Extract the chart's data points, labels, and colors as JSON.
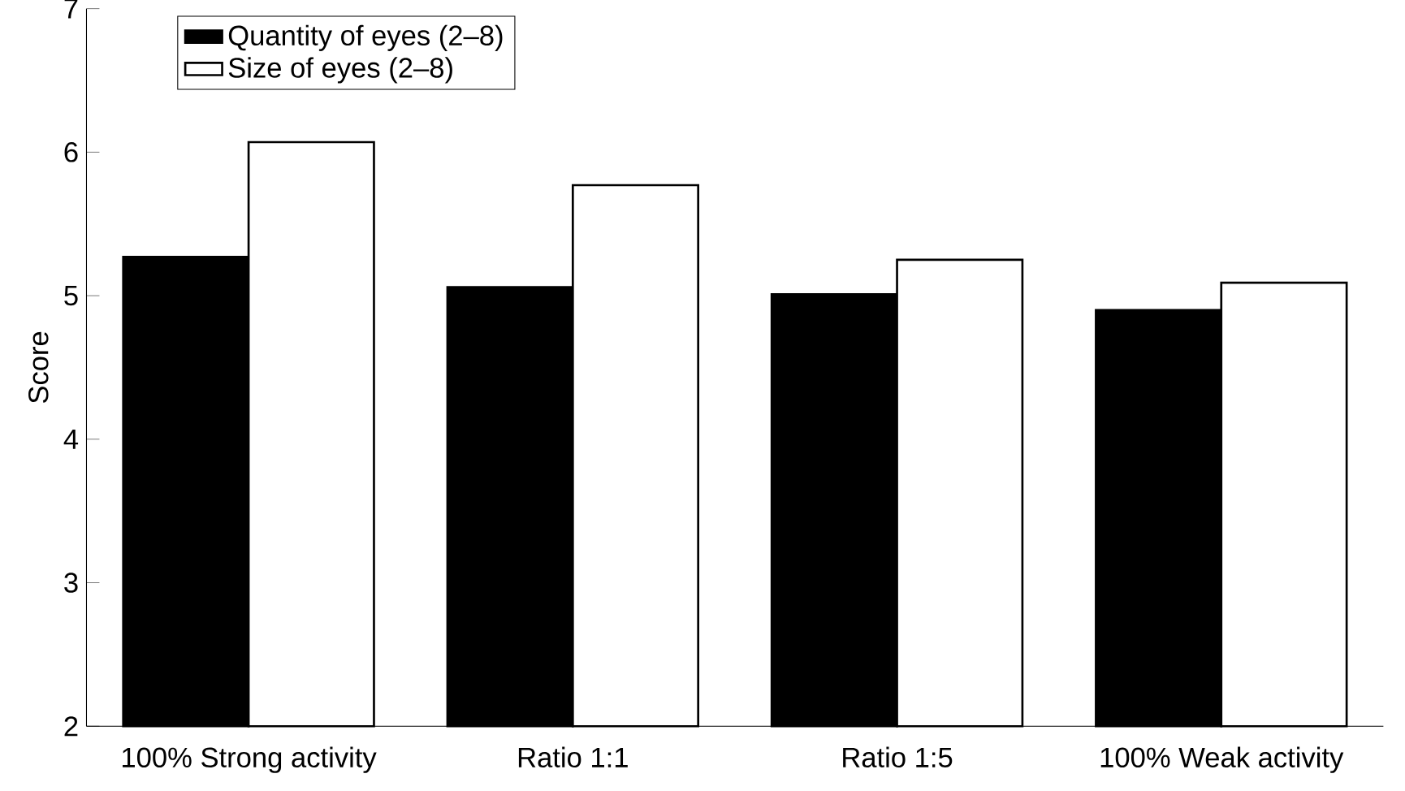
{
  "chart_data": {
    "type": "bar",
    "ylabel": "Score",
    "categories": [
      "100% Strong activity",
      "Ratio 1:1",
      "Ratio 1:5",
      "100% Weak activity"
    ],
    "series": [
      {
        "name": "Quantity of eyes (2–8)",
        "color": "#000000",
        "values": [
          5.27,
          5.06,
          5.01,
          4.9
        ]
      },
      {
        "name": "Size of eyes (2–8)",
        "color": "#ffffff",
        "values": [
          6.07,
          5.77,
          5.25,
          5.09
        ]
      }
    ],
    "ylim": [
      2,
      7
    ],
    "yticks": [
      2,
      3,
      4,
      5,
      6,
      7
    ],
    "legend": "top left",
    "grid": false
  }
}
